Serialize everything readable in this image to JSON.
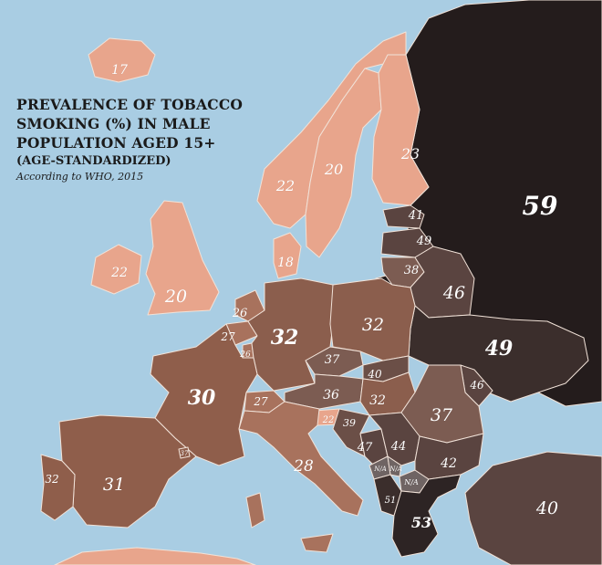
{
  "title": {
    "line1": "PREVALENCE OF TOBACCO",
    "line2": "SMOKING (%) IN MALE",
    "line3": "POPULATION AGED 15+",
    "subtitle": "(AGE-STANDARDIZED)",
    "source": "According to WHO, 2015"
  },
  "colors": {
    "sea": "#a9cde3",
    "low": "#e8a58c",
    "mid": "#9e6a55",
    "high": "#5a4440",
    "very_high": "#241c1c",
    "border": "#f4e8e0"
  },
  "regions": {
    "iceland": "17",
    "norway": "22",
    "sweden": "20",
    "finland": "23",
    "russia": "59",
    "estonia": "41",
    "latvia": "49",
    "lithuania": "38",
    "belarus": "46",
    "ireland": "22",
    "uk": "20",
    "denmark": "18",
    "netherlands": "26",
    "belgium": "27",
    "luxembourg": "26",
    "germany": "32",
    "poland": "32",
    "czechia": "37",
    "slovakia": "40",
    "ukraine": "49",
    "moldova": "46",
    "france": "30",
    "switzerland": "27",
    "austria": "36",
    "hungary": "32",
    "slovenia": "22",
    "croatia": "39",
    "romania": "37",
    "bosnia": "47",
    "serbia": "44",
    "montenegro": "N/A",
    "kosovo": "N/A",
    "north_macedonia": "N/A",
    "albania": "51",
    "bulgaria": "42",
    "greece": "53",
    "turkey": "40",
    "spain": "31",
    "portugal": "32",
    "andorra": "37",
    "italy": "28"
  }
}
